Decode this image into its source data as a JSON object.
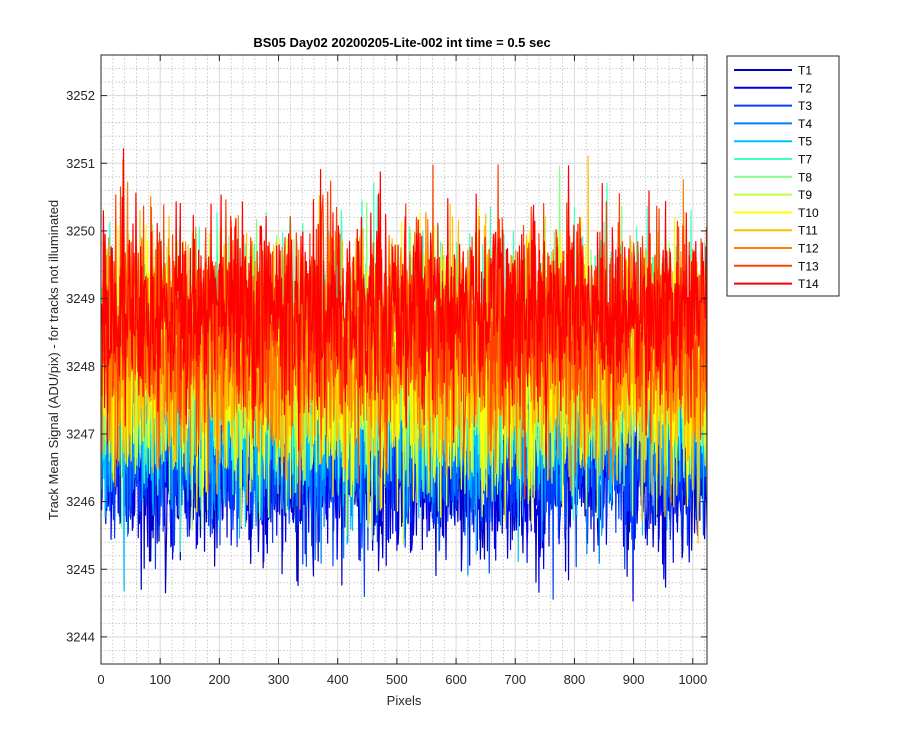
{
  "chart_data": {
    "type": "line",
    "title": "BS05 Day02 20200205-Lite-002 int time = 0.5 sec",
    "xlabel": "Pixels",
    "ylabel": "Track Mean Signal (ADU/pix) - for tracks not illuminated",
    "xlim": [
      0,
      1024
    ],
    "ylim": [
      3243.6,
      3252.6
    ],
    "xticks": [
      0,
      100,
      200,
      300,
      400,
      500,
      600,
      700,
      800,
      900,
      1000
    ],
    "yticks": [
      3244,
      3245,
      3246,
      3247,
      3248,
      3249,
      3250,
      3251,
      3252
    ],
    "grid": "major and minor",
    "legend_position": "outside top-right",
    "series": [
      {
        "name": "T1",
        "color": "#0000bf",
        "mean": 3246.4,
        "spread": 0.6,
        "seed": 11
      },
      {
        "name": "T2",
        "color": "#0000e6",
        "mean": 3246.5,
        "spread": 0.6,
        "seed": 12
      },
      {
        "name": "T3",
        "color": "#0040ff",
        "mean": 3246.6,
        "spread": 0.6,
        "seed": 13
      },
      {
        "name": "T4",
        "color": "#0080ff",
        "mean": 3247.1,
        "spread": 0.7,
        "seed": 14
      },
      {
        "name": "T5",
        "color": "#00bfff",
        "mean": 3247.3,
        "spread": 0.7,
        "seed": 15
      },
      {
        "name": "T7",
        "color": "#40ffbf",
        "mean": 3248.2,
        "spread": 0.9,
        "seed": 16
      },
      {
        "name": "T8",
        "color": "#80ff80",
        "mean": 3248.0,
        "spread": 0.85,
        "seed": 17
      },
      {
        "name": "T9",
        "color": "#bfff40",
        "mean": 3247.8,
        "spread": 0.85,
        "seed": 18
      },
      {
        "name": "T10",
        "color": "#ffff00",
        "mean": 3248.0,
        "spread": 0.85,
        "seed": 19
      },
      {
        "name": "T11",
        "color": "#ffbf00",
        "mean": 3248.1,
        "spread": 0.85,
        "seed": 20
      },
      {
        "name": "T12",
        "color": "#ff8000",
        "mean": 3248.3,
        "spread": 0.8,
        "seed": 21
      },
      {
        "name": "T13",
        "color": "#ff4000",
        "mean": 3248.6,
        "spread": 0.8,
        "seed": 22
      },
      {
        "name": "T14",
        "color": "#ff0000",
        "mean": 3248.8,
        "spread": 0.75,
        "seed": 23
      }
    ]
  }
}
